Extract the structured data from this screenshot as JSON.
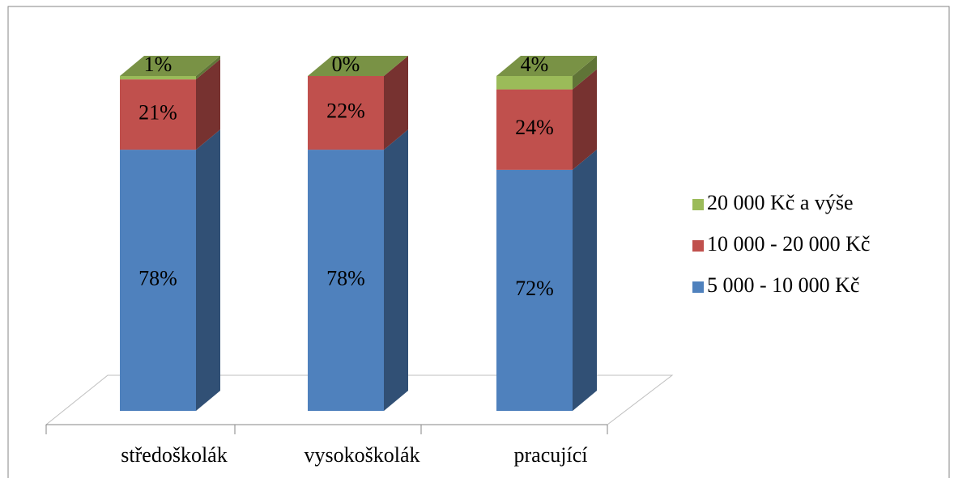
{
  "chart_data": {
    "type": "bar3d_stacked",
    "categories": [
      "středoškolák",
      "vysokoškolák",
      "pracující"
    ],
    "series": [
      {
        "name": "5 000 - 10 000  Kč",
        "color": "#4f81bd",
        "values": [
          78,
          78,
          72
        ],
        "value_labels": [
          "78%",
          "78%",
          "72%"
        ]
      },
      {
        "name": "10 000 - 20 000 Kč",
        "color": "#c0504d",
        "values": [
          21,
          22,
          24
        ],
        "value_labels": [
          "21%",
          "22%",
          "24%"
        ]
      },
      {
        "name": "20 000 Kč a výše",
        "color": "#9bbb59",
        "values": [
          1,
          0,
          4
        ],
        "value_labels": [
          "1%",
          "0%",
          "4%"
        ]
      }
    ]
  }
}
